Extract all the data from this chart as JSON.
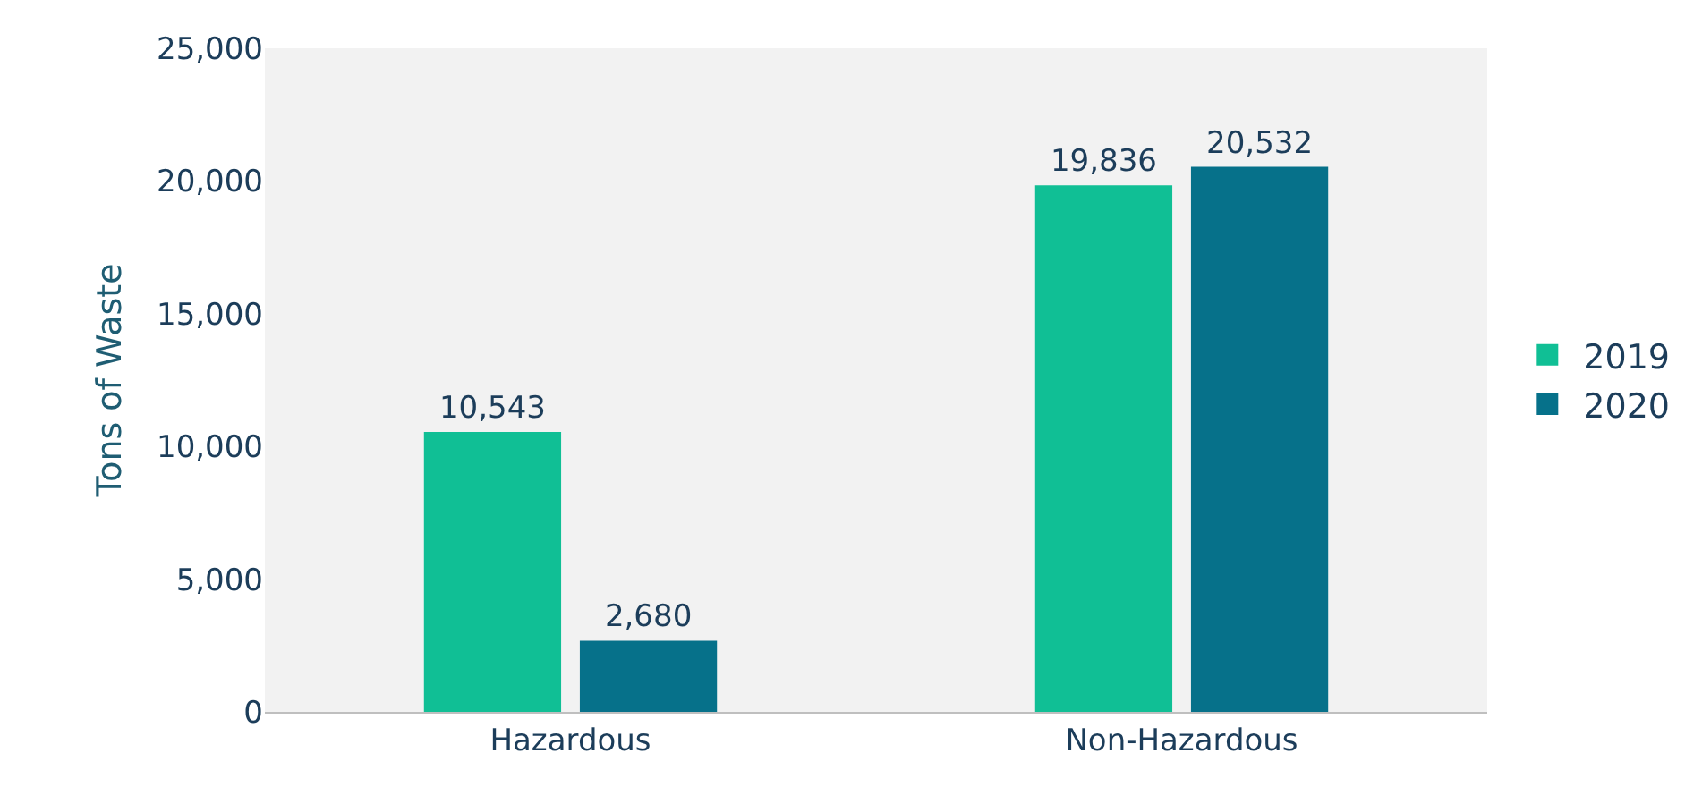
{
  "chart_data": {
    "type": "bar",
    "ylabel": "Tons of Waste",
    "categories": [
      "Hazardous",
      "Non-Hazardous"
    ],
    "series": [
      {
        "name": "2019",
        "color": "#10bf95",
        "values": [
          10543,
          19836
        ],
        "value_labels": [
          "10,543",
          "19,836"
        ]
      },
      {
        "name": "2020",
        "color": "#06718a",
        "values": [
          2680,
          20532
        ],
        "value_labels": [
          "2,680",
          "20,532"
        ]
      }
    ],
    "ylim": [
      0,
      25000
    ],
    "yticks": [
      {
        "value": 0,
        "label": "0"
      },
      {
        "value": 5000,
        "label": "5,000"
      },
      {
        "value": 10000,
        "label": "10,000"
      },
      {
        "value": 15000,
        "label": "15,000"
      },
      {
        "value": 20000,
        "label": "20,000"
      },
      {
        "value": 25000,
        "label": "25,000"
      }
    ],
    "grid": false,
    "legend": "right"
  }
}
